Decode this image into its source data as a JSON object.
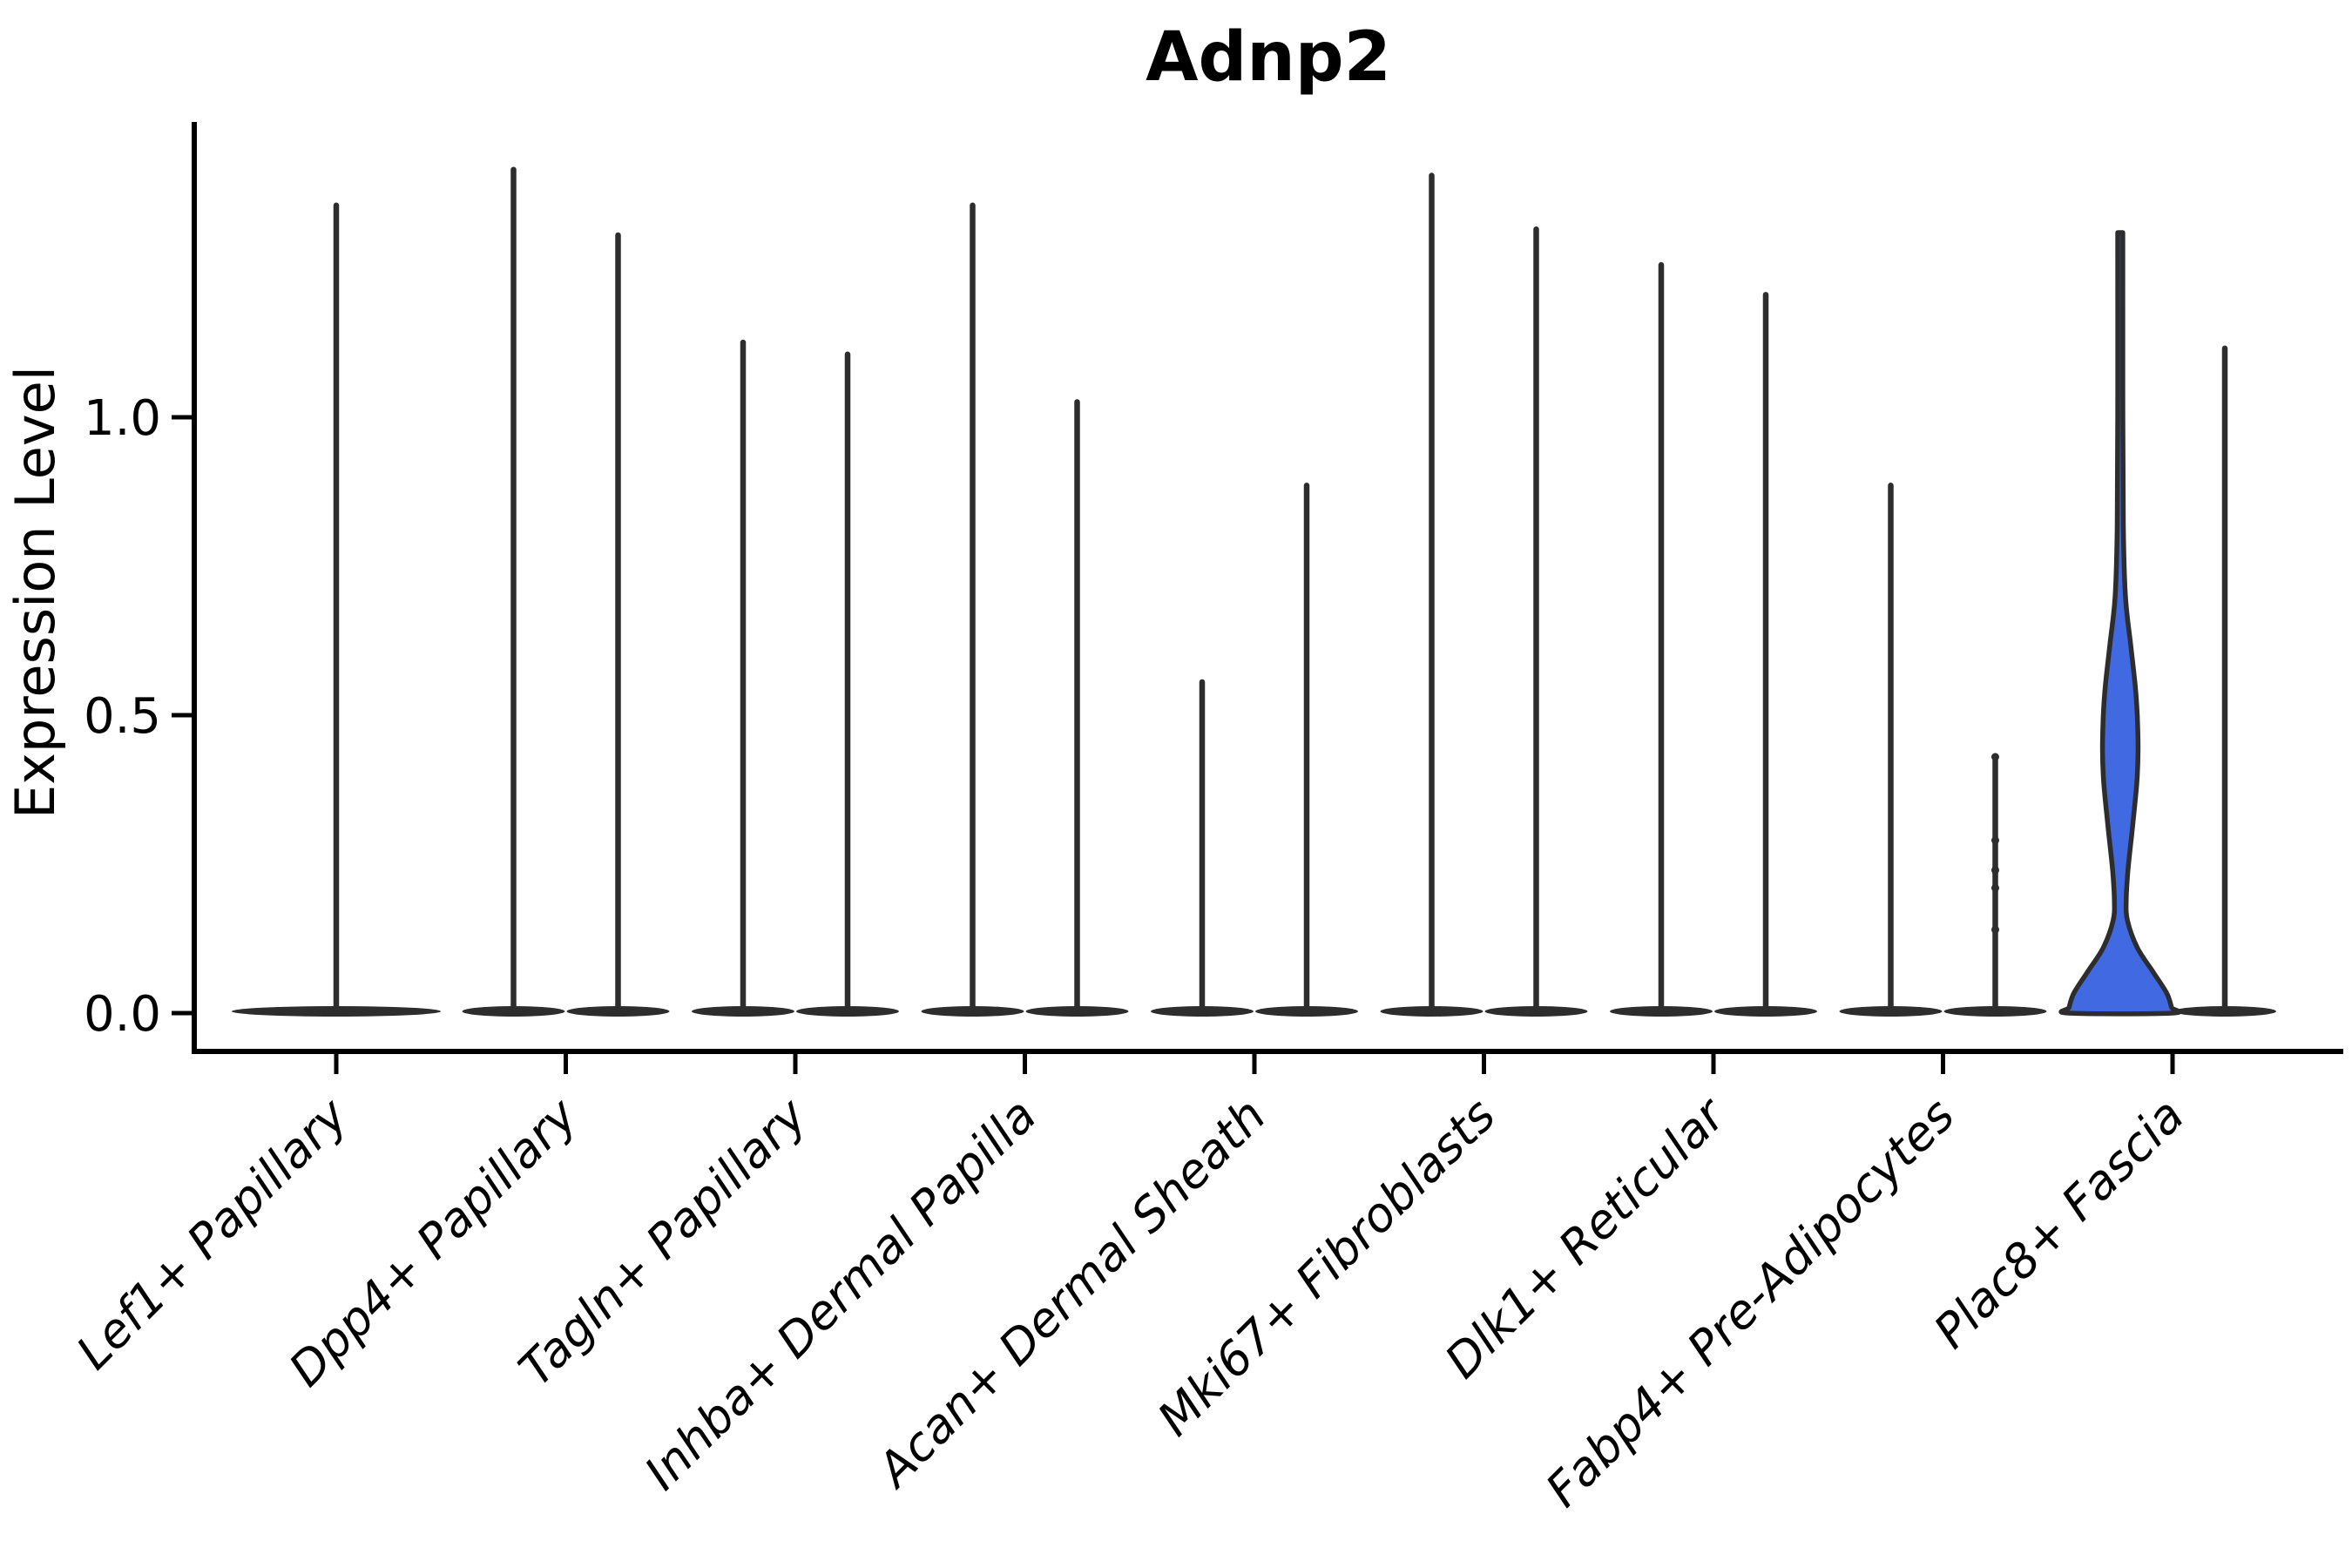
{
  "chart_data": {
    "type": "violin",
    "title": "Adnp2",
    "ylabel": "Expression Level",
    "ylim": [
      0,
      1.47
    ],
    "yticks": [
      0.0,
      0.5,
      1.0
    ],
    "ytick_labels": [
      "0.0",
      "0.5",
      "1.0"
    ],
    "categories": [
      "Lef1+ Papillary",
      "Dpp4+ Papillary",
      "Tagln+ Papillary",
      "Inhba+ Dermal Papilla",
      "Acan+ Dermal Sheath",
      "Mki67+ Fibroblasts",
      "Dlk1+ Reticular",
      "Fabp4+ Pre-Adipocytes",
      "Plac8+ Fascia"
    ],
    "violins": [
      {
        "category": "Lef1+ Papillary",
        "parts": [
          {
            "max": 1.36,
            "width": "double"
          }
        ]
      },
      {
        "category": "Dpp4+ Papillary",
        "parts": [
          {
            "max": 1.42
          },
          {
            "max": 1.31
          }
        ]
      },
      {
        "category": "Tagln+ Papillary",
        "parts": [
          {
            "max": 1.13
          },
          {
            "max": 1.11
          }
        ]
      },
      {
        "category": "Inhba+ Dermal Papilla",
        "parts": [
          {
            "max": 1.36
          },
          {
            "max": 1.03
          }
        ]
      },
      {
        "category": "Acan+ Dermal Sheath",
        "parts": [
          {
            "max": 0.56
          },
          {
            "max": 0.89
          }
        ]
      },
      {
        "category": "Mki67+ Fibroblasts",
        "parts": [
          {
            "max": 1.41
          },
          {
            "max": 1.32
          }
        ]
      },
      {
        "category": "Dlk1+ Reticular",
        "parts": [
          {
            "max": 1.26
          },
          {
            "max": 1.21
          }
        ]
      },
      {
        "category": "Fabp4+ Pre-Adipocytes",
        "parts": [
          {
            "max": 0.89
          },
          {
            "max": 0.43,
            "points": [
              0.43,
              0.29,
              0.24,
              0.21,
              0.14
            ]
          }
        ]
      },
      {
        "category": "Plac8+ Fascia",
        "parts": [
          {
            "max": 1.31,
            "fill": "#4169E1",
            "bimodal": true,
            "profile": [
              [
                1.31,
                0.05
              ],
              [
                1.05,
                0.05
              ],
              [
                0.82,
                0.06
              ],
              [
                0.7,
                0.1
              ],
              [
                0.62,
                0.2
              ],
              [
                0.55,
                0.29
              ],
              [
                0.5,
                0.33
              ],
              [
                0.44,
                0.345
              ],
              [
                0.385,
                0.32
              ],
              [
                0.31,
                0.235
              ],
              [
                0.24,
                0.15
              ],
              [
                0.19,
                0.115
              ],
              [
                0.155,
                0.14
              ],
              [
                0.11,
                0.33
              ],
              [
                0.07,
                0.63
              ],
              [
                0.034,
                0.9
              ],
              [
                0.01,
                0.995
              ],
              [
                0.0,
                1.0
              ]
            ]
          },
          {
            "max": 1.12
          }
        ]
      }
    ],
    "legend": "none",
    "grid": "off",
    "line_color": "#2d2d2d",
    "highlight_fill": "#4169E1",
    "background": "#ffffff"
  }
}
